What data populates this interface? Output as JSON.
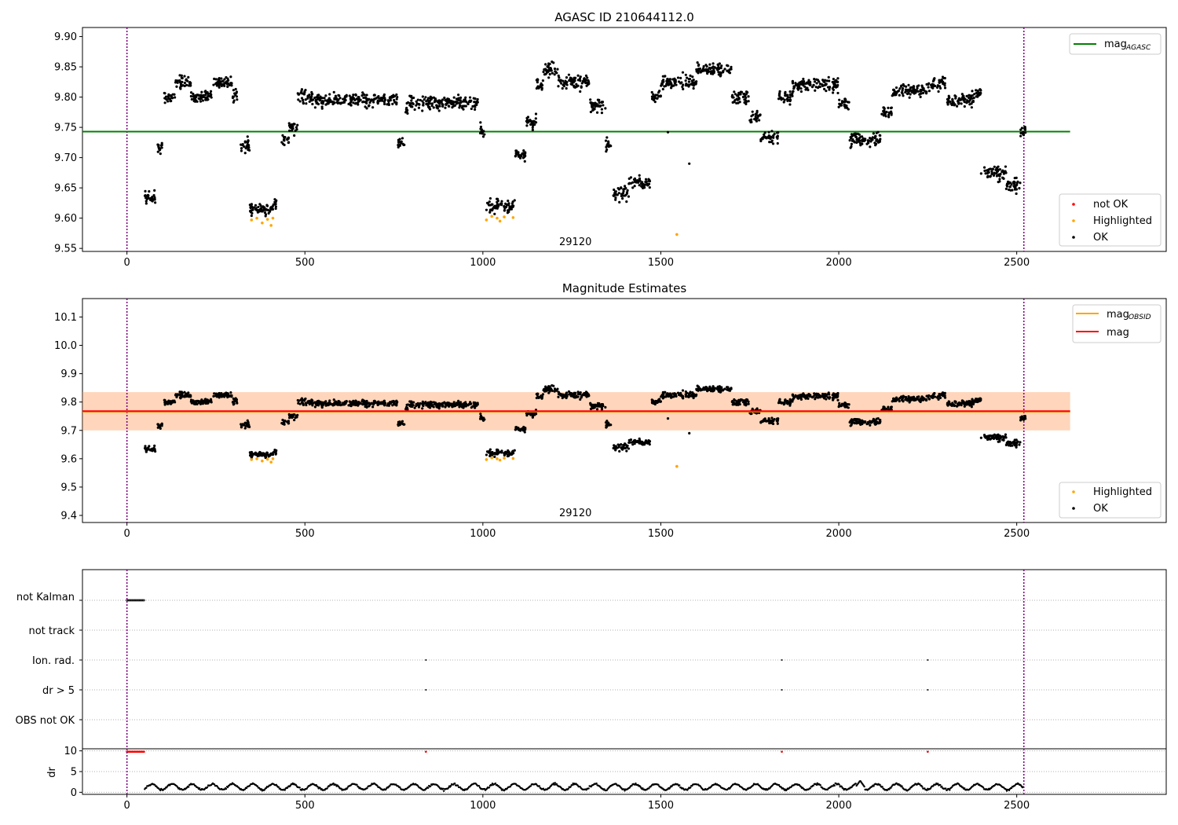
{
  "chart_data": [
    {
      "type": "scatter",
      "title": "AGASC ID 210644112.0",
      "ylim": [
        9.545,
        9.915
      ],
      "yticks": [
        "9.55",
        "9.60",
        "9.65",
        "9.70",
        "9.75",
        "9.80",
        "9.85",
        "9.90"
      ],
      "ytick_values": [
        9.55,
        9.6,
        9.65,
        9.7,
        9.75,
        9.8,
        9.85,
        9.9
      ],
      "xlim": [
        -125,
        2920
      ],
      "xticks": [
        "0",
        "500",
        "1000",
        "1500",
        "2000",
        "2500"
      ],
      "xtick_values": [
        0,
        500,
        1000,
        1500,
        2000,
        2500
      ],
      "annotation": "29120",
      "annotation_x": 1260,
      "vlines": [
        0,
        2520
      ],
      "hline": {
        "label": "mag",
        "label_sub": "AGASC",
        "value": 9.743,
        "x": [
          -125,
          2650
        ],
        "color": "#008000"
      },
      "legend_points": [
        {
          "label": "not OK",
          "color": "#ff0000"
        },
        {
          "label": "Highlighted",
          "color": "#ffa500"
        },
        {
          "label": "OK",
          "color": "#000000"
        }
      ],
      "ok_segments": [
        [
          50,
          80,
          9.635
        ],
        [
          85,
          100,
          9.715
        ],
        [
          105,
          135,
          9.8
        ],
        [
          135,
          180,
          9.825
        ],
        [
          180,
          240,
          9.8
        ],
        [
          240,
          295,
          9.825
        ],
        [
          295,
          310,
          9.8
        ],
        [
          315,
          345,
          9.72
        ],
        [
          345,
          410,
          9.615
        ],
        [
          410,
          420,
          9.625
        ],
        [
          435,
          455,
          9.73
        ],
        [
          455,
          480,
          9.75
        ],
        [
          480,
          520,
          9.8
        ],
        [
          520,
          560,
          9.795
        ],
        [
          560,
          640,
          9.795
        ],
        [
          640,
          760,
          9.795
        ],
        [
          760,
          780,
          9.725
        ],
        [
          780,
          790,
          9.78
        ],
        [
          790,
          990,
          9.79
        ],
        [
          990,
          1005,
          9.745
        ],
        [
          1010,
          1090,
          9.62
        ],
        [
          1090,
          1120,
          9.705
        ],
        [
          1120,
          1150,
          9.76
        ],
        [
          1150,
          1170,
          9.82
        ],
        [
          1170,
          1210,
          9.845
        ],
        [
          1210,
          1300,
          9.825
        ],
        [
          1300,
          1345,
          9.785
        ],
        [
          1345,
          1360,
          9.72
        ],
        [
          1365,
          1410,
          9.64
        ],
        [
          1410,
          1470,
          9.66
        ],
        [
          1475,
          1500,
          9.8
        ],
        [
          1500,
          1600,
          9.825
        ],
        [
          1600,
          1700,
          9.845
        ],
        [
          1700,
          1750,
          9.8
        ],
        [
          1750,
          1780,
          9.765
        ],
        [
          1780,
          1830,
          9.735
        ],
        [
          1830,
          1870,
          9.8
        ],
        [
          1870,
          2000,
          9.82
        ],
        [
          2000,
          2030,
          9.79
        ],
        [
          2030,
          2120,
          9.73
        ],
        [
          2120,
          2150,
          9.775
        ],
        [
          2150,
          2250,
          9.81
        ],
        [
          2250,
          2300,
          9.82
        ],
        [
          2300,
          2380,
          9.795
        ],
        [
          2380,
          2400,
          9.81
        ],
        [
          2400,
          2470,
          9.675
        ],
        [
          2470,
          2510,
          9.655
        ],
        [
          2510,
          2525,
          9.745
        ]
      ],
      "highlighted": [
        [
          350,
          9.597
        ],
        [
          365,
          9.6
        ],
        [
          380,
          9.592
        ],
        [
          395,
          9.598
        ],
        [
          405,
          9.588
        ],
        [
          410,
          9.6
        ],
        [
          1010,
          9.597
        ],
        [
          1025,
          9.603
        ],
        [
          1040,
          9.6
        ],
        [
          1048,
          9.595
        ],
        [
          1060,
          9.602
        ],
        [
          1085,
          9.601
        ],
        [
          1545,
          9.573
        ]
      ],
      "outliers": [
        [
          1520,
          9.742
        ],
        [
          1580,
          9.69
        ]
      ]
    },
    {
      "type": "scatter",
      "title": "Magnitude Estimates",
      "ylim": [
        9.375,
        10.165
      ],
      "yticks": [
        "9.4",
        "9.5",
        "9.6",
        "9.7",
        "9.8",
        "9.9",
        "10.0",
        "10.1"
      ],
      "ytick_values": [
        9.4,
        9.5,
        9.6,
        9.7,
        9.8,
        9.9,
        10.0,
        10.1
      ],
      "xlim": [
        -125,
        2920
      ],
      "xticks": [
        "0",
        "500",
        "1000",
        "1500",
        "2000",
        "2500"
      ],
      "xtick_values": [
        0,
        500,
        1000,
        1500,
        2000,
        2500
      ],
      "annotation": "29120",
      "annotation_x": 1260,
      "vlines": [
        0,
        2520
      ],
      "band_obsid": {
        "low": 9.7,
        "high": 9.835,
        "color": "#ffa500"
      },
      "band_mag": {
        "low": 9.7,
        "high": 9.835,
        "color": "#ff9aa8"
      },
      "lines": [
        {
          "label": "mag",
          "label_sub": "OBSID",
          "value": 9.766,
          "color": "#ffa500"
        },
        {
          "label": "mag",
          "value": 9.768,
          "color": "#ff0000"
        }
      ],
      "legend_points": [
        {
          "label": "Highlighted",
          "color": "#ffa500"
        },
        {
          "label": "OK",
          "color": "#000000"
        }
      ]
    },
    {
      "type": "scatter",
      "ylabel": "dr",
      "flags": [
        "not Kalman",
        "not track",
        "Ion. rad.",
        "dr > 5",
        "OBS not OK"
      ],
      "xlim": [
        -125,
        2920
      ],
      "xticks": [
        "0",
        "500",
        "1000",
        "1500",
        "2000",
        "2500"
      ],
      "xtick_values": [
        0,
        500,
        1000,
        1500,
        2000,
        2500
      ],
      "dr_ylim": [
        -0.5,
        10.5
      ],
      "dr_yticks": [
        "0",
        "5",
        "10"
      ],
      "dr_ytick_values": [
        0,
        5,
        10
      ],
      "not_kalman_x": [
        0,
        50
      ],
      "ion_rad_x": [
        840,
        1840,
        2250
      ],
      "dr_gt5_x": [
        840,
        1840,
        2250
      ],
      "dr_high_x": [
        0,
        50
      ],
      "dr_high_points": [
        840,
        1840,
        2250
      ],
      "dr_range": [
        50,
        2520
      ],
      "dr_peak": [
        2060,
        2.8
      ]
    }
  ]
}
